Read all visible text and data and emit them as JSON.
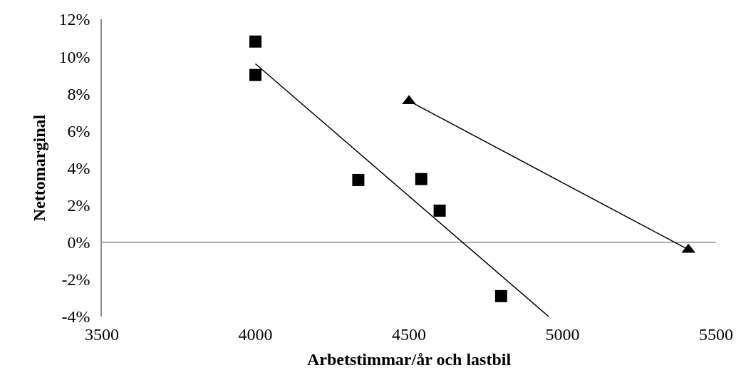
{
  "chart_data": {
    "type": "scatter",
    "xlabel": "Arbetstimmar/år och lastbil",
    "ylabel": "Nettomarginal",
    "xlim": [
      3500,
      5500
    ],
    "xticks": [
      3500,
      4000,
      4500,
      5000,
      5500
    ],
    "ylim": [
      -4,
      12
    ],
    "yticks": [
      {
        "value": -4,
        "label": "-4%"
      },
      {
        "value": -2,
        "label": "-2%"
      },
      {
        "value": 0,
        "label": "0%"
      },
      {
        "value": 2,
        "label": "2%"
      },
      {
        "value": 4,
        "label": "4%"
      },
      {
        "value": 6,
        "label": "6%"
      },
      {
        "value": 8,
        "label": "8%"
      },
      {
        "value": 10,
        "label": "10%"
      },
      {
        "value": 12,
        "label": "12%"
      }
    ],
    "ref_lines": [
      {
        "axis": "y",
        "value": 0,
        "color": "#8c8c8c"
      }
    ],
    "series": [
      {
        "marker": "square",
        "color": "#000000",
        "x": [
          4000,
          4000,
          4335,
          4540,
          4600,
          4800
        ],
        "values": [
          10.8,
          9.0,
          3.35,
          3.4,
          1.7,
          -2.9
        ]
      },
      {
        "marker": "triangle",
        "color": "#000000",
        "x": [
          4500,
          5410
        ],
        "values": [
          7.6,
          -0.4
        ]
      },
      {
        "type": "line",
        "marker": "none",
        "line_style": "solid",
        "color": "#000000",
        "x": [
          4000,
          4955
        ],
        "values": [
          9.6,
          -4
        ]
      },
      {
        "type": "line",
        "marker": "none",
        "line_style": "solid",
        "color": "#000000",
        "x": [
          4500,
          5410
        ],
        "values": [
          7.6,
          -0.4
        ]
      }
    ]
  }
}
